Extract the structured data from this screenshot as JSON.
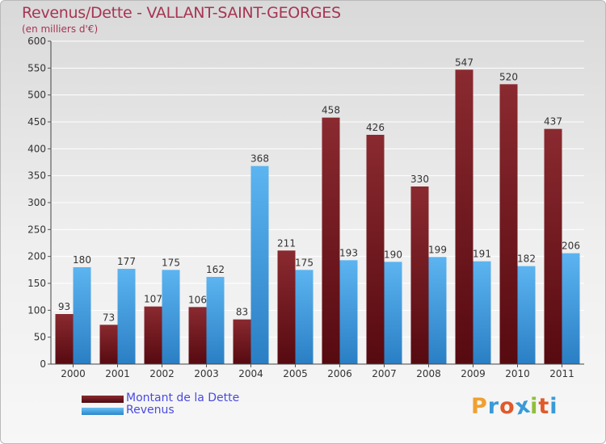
{
  "chart_data": {
    "type": "bar",
    "title": "Revenus/Dette - VALLANT-SAINT-GEORGES",
    "subtitle": "(en milliers d'€)",
    "categories": [
      "2000",
      "2001",
      "2002",
      "2003",
      "2004",
      "2005",
      "2006",
      "2007",
      "2008",
      "2009",
      "2010",
      "2011"
    ],
    "series": [
      {
        "name": "Montant de la Dette",
        "color": "#7a1c22",
        "values": [
          93,
          73,
          107,
          106,
          83,
          211,
          458,
          426,
          330,
          547,
          520,
          437
        ]
      },
      {
        "name": "Revenus",
        "color": "#4aa3e8",
        "values": [
          180,
          177,
          175,
          162,
          368,
          175,
          193,
          190,
          199,
          191,
          182,
          206
        ]
      }
    ],
    "ylim": [
      0,
      600
    ],
    "yticks": [
      0,
      50,
      100,
      150,
      200,
      250,
      300,
      350,
      400,
      450,
      500,
      550,
      600
    ],
    "grid": true,
    "legend_position": "bottom-left"
  },
  "logo": {
    "text": "Proxiti",
    "letters": [
      "P",
      "r",
      "o",
      "x",
      "i",
      "t",
      "i"
    ],
    "colors": [
      "#f0a030",
      "#3a9ad8",
      "#e05a2a",
      "#3a9ad8",
      "#8fbf3a",
      "#e05a2a",
      "#3a9ad8"
    ]
  }
}
